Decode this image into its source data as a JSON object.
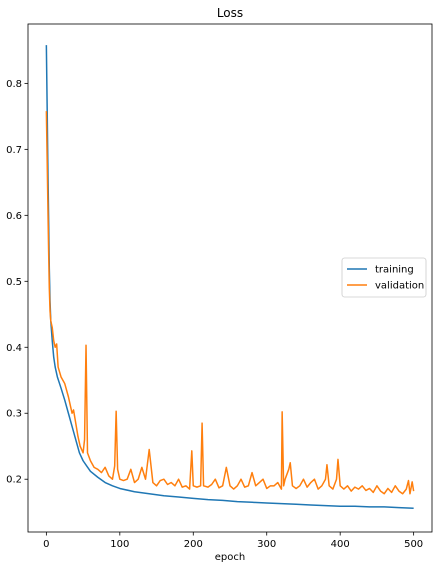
{
  "chart_data": {
    "type": "line",
    "title": "Loss",
    "xlabel": "epoch",
    "ylabel": "",
    "xlim": [
      -25,
      525
    ],
    "ylim": [
      0.12,
      0.89
    ],
    "xticks": [
      0,
      100,
      200,
      300,
      400,
      500
    ],
    "yticks": [
      0.2,
      0.3,
      0.4,
      0.5,
      0.6,
      0.7,
      0.8
    ],
    "grid": false,
    "legend_position": "center-right",
    "series": [
      {
        "name": "training",
        "color": "#1f77b4",
        "points": [
          [
            0,
            0.858
          ],
          [
            1,
            0.77
          ],
          [
            2,
            0.68
          ],
          [
            3,
            0.6
          ],
          [
            4,
            0.52
          ],
          [
            5,
            0.47
          ],
          [
            6,
            0.44
          ],
          [
            8,
            0.41
          ],
          [
            10,
            0.385
          ],
          [
            12,
            0.37
          ],
          [
            15,
            0.355
          ],
          [
            20,
            0.338
          ],
          [
            25,
            0.32
          ],
          [
            30,
            0.3
          ],
          [
            35,
            0.28
          ],
          [
            40,
            0.26
          ],
          [
            45,
            0.24
          ],
          [
            50,
            0.228
          ],
          [
            55,
            0.22
          ],
          [
            60,
            0.212
          ],
          [
            70,
            0.203
          ],
          [
            80,
            0.195
          ],
          [
            90,
            0.19
          ],
          [
            100,
            0.186
          ],
          [
            120,
            0.181
          ],
          [
            140,
            0.178
          ],
          [
            160,
            0.175
          ],
          [
            180,
            0.173
          ],
          [
            200,
            0.171
          ],
          [
            220,
            0.169
          ],
          [
            240,
            0.168
          ],
          [
            260,
            0.166
          ],
          [
            280,
            0.165
          ],
          [
            300,
            0.164
          ],
          [
            320,
            0.163
          ],
          [
            340,
            0.162
          ],
          [
            360,
            0.161
          ],
          [
            380,
            0.16
          ],
          [
            400,
            0.159
          ],
          [
            420,
            0.159
          ],
          [
            440,
            0.158
          ],
          [
            460,
            0.158
          ],
          [
            480,
            0.157
          ],
          [
            500,
            0.156
          ]
        ]
      },
      {
        "name": "validation",
        "color": "#ff7f0e",
        "points": [
          [
            0,
            0.758
          ],
          [
            1,
            0.69
          ],
          [
            2,
            0.62
          ],
          [
            3,
            0.55
          ],
          [
            4,
            0.49
          ],
          [
            5,
            0.455
          ],
          [
            6,
            0.44
          ],
          [
            8,
            0.43
          ],
          [
            10,
            0.41
          ],
          [
            12,
            0.4
          ],
          [
            14,
            0.405
          ],
          [
            16,
            0.37
          ],
          [
            20,
            0.355
          ],
          [
            25,
            0.345
          ],
          [
            30,
            0.325
          ],
          [
            33,
            0.31
          ],
          [
            35,
            0.3
          ],
          [
            37,
            0.305
          ],
          [
            40,
            0.285
          ],
          [
            43,
            0.265
          ],
          [
            46,
            0.25
          ],
          [
            50,
            0.24
          ],
          [
            52,
            0.26
          ],
          [
            54,
            0.403
          ],
          [
            56,
            0.24
          ],
          [
            60,
            0.228
          ],
          [
            65,
            0.218
          ],
          [
            70,
            0.215
          ],
          [
            75,
            0.21
          ],
          [
            80,
            0.218
          ],
          [
            85,
            0.205
          ],
          [
            90,
            0.2
          ],
          [
            93,
            0.22
          ],
          [
            95,
            0.303
          ],
          [
            97,
            0.215
          ],
          [
            100,
            0.2
          ],
          [
            105,
            0.198
          ],
          [
            110,
            0.2
          ],
          [
            115,
            0.215
          ],
          [
            120,
            0.195
          ],
          [
            125,
            0.2
          ],
          [
            130,
            0.218
          ],
          [
            135,
            0.2
          ],
          [
            140,
            0.245
          ],
          [
            145,
            0.195
          ],
          [
            150,
            0.19
          ],
          [
            155,
            0.198
          ],
          [
            160,
            0.2
          ],
          [
            165,
            0.192
          ],
          [
            170,
            0.195
          ],
          [
            175,
            0.19
          ],
          [
            180,
            0.2
          ],
          [
            185,
            0.188
          ],
          [
            190,
            0.19
          ],
          [
            195,
            0.185
          ],
          [
            198,
            0.243
          ],
          [
            200,
            0.19
          ],
          [
            205,
            0.188
          ],
          [
            210,
            0.19
          ],
          [
            212,
            0.285
          ],
          [
            214,
            0.19
          ],
          [
            220,
            0.188
          ],
          [
            225,
            0.192
          ],
          [
            230,
            0.2
          ],
          [
            235,
            0.187
          ],
          [
            240,
            0.19
          ],
          [
            245,
            0.218
          ],
          [
            250,
            0.19
          ],
          [
            255,
            0.185
          ],
          [
            260,
            0.19
          ],
          [
            265,
            0.2
          ],
          [
            270,
            0.188
          ],
          [
            275,
            0.19
          ],
          [
            280,
            0.21
          ],
          [
            285,
            0.19
          ],
          [
            290,
            0.195
          ],
          [
            295,
            0.2
          ],
          [
            300,
            0.186
          ],
          [
            305,
            0.19
          ],
          [
            310,
            0.19
          ],
          [
            315,
            0.195
          ],
          [
            320,
            0.185
          ],
          [
            321,
            0.302
          ],
          [
            323,
            0.19
          ],
          [
            325,
            0.2
          ],
          [
            330,
            0.215
          ],
          [
            332,
            0.225
          ],
          [
            335,
            0.19
          ],
          [
            340,
            0.186
          ],
          [
            345,
            0.19
          ],
          [
            350,
            0.2
          ],
          [
            355,
            0.188
          ],
          [
            360,
            0.195
          ],
          [
            365,
            0.2
          ],
          [
            370,
            0.185
          ],
          [
            375,
            0.19
          ],
          [
            380,
            0.2
          ],
          [
            382,
            0.222
          ],
          [
            385,
            0.19
          ],
          [
            390,
            0.185
          ],
          [
            395,
            0.2
          ],
          [
            397,
            0.23
          ],
          [
            400,
            0.19
          ],
          [
            405,
            0.185
          ],
          [
            410,
            0.19
          ],
          [
            415,
            0.182
          ],
          [
            420,
            0.188
          ],
          [
            425,
            0.185
          ],
          [
            430,
            0.19
          ],
          [
            435,
            0.183
          ],
          [
            440,
            0.186
          ],
          [
            445,
            0.18
          ],
          [
            450,
            0.19
          ],
          [
            455,
            0.182
          ],
          [
            460,
            0.178
          ],
          [
            465,
            0.186
          ],
          [
            470,
            0.18
          ],
          [
            475,
            0.19
          ],
          [
            480,
            0.182
          ],
          [
            485,
            0.178
          ],
          [
            490,
            0.185
          ],
          [
            493,
            0.198
          ],
          [
            495,
            0.178
          ],
          [
            498,
            0.196
          ],
          [
            500,
            0.182
          ]
        ]
      }
    ]
  }
}
